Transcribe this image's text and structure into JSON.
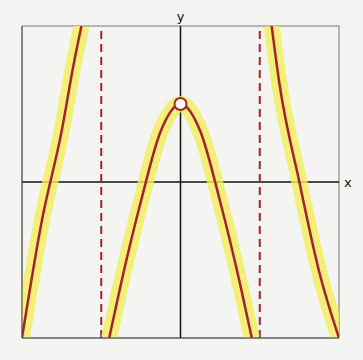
{
  "chart_data": {
    "type": "line",
    "x_label": "x",
    "y_label": "y",
    "xlim": [
      -4,
      4
    ],
    "ylim": [
      -4,
      4
    ],
    "xticks": [
      -4,
      -3,
      -2,
      -1,
      0,
      1,
      2,
      3,
      4
    ],
    "yticks": [
      -4,
      -3,
      -2,
      -1,
      0,
      1,
      2,
      3,
      4
    ],
    "grid": true,
    "tick_labels": false,
    "series": [
      {
        "color": "#a8202c",
        "x": [
          -4,
          -3.5,
          -3,
          -2.7,
          -2.5
        ],
        "values": [
          -4,
          -1,
          1.3,
          3,
          4
        ]
      },
      {
        "color": "#a8202c",
        "x": [
          -1.8,
          -1.5,
          -1,
          -0.5,
          0,
          0.5,
          1,
          1.5,
          1.8
        ],
        "values": [
          -4,
          -2.6,
          -0.5,
          1.3,
          2,
          1.3,
          -0.5,
          -2.6,
          -4
        ]
      },
      {
        "color": "#a8202c",
        "x": [
          2.3,
          2.5,
          3,
          3.5,
          4
        ],
        "values": [
          4,
          2.5,
          0,
          -2.3,
          -4
        ]
      }
    ],
    "asymptotes": [
      -2,
      2
    ],
    "holes": [
      {
        "x": 0,
        "y": 2
      }
    ]
  }
}
